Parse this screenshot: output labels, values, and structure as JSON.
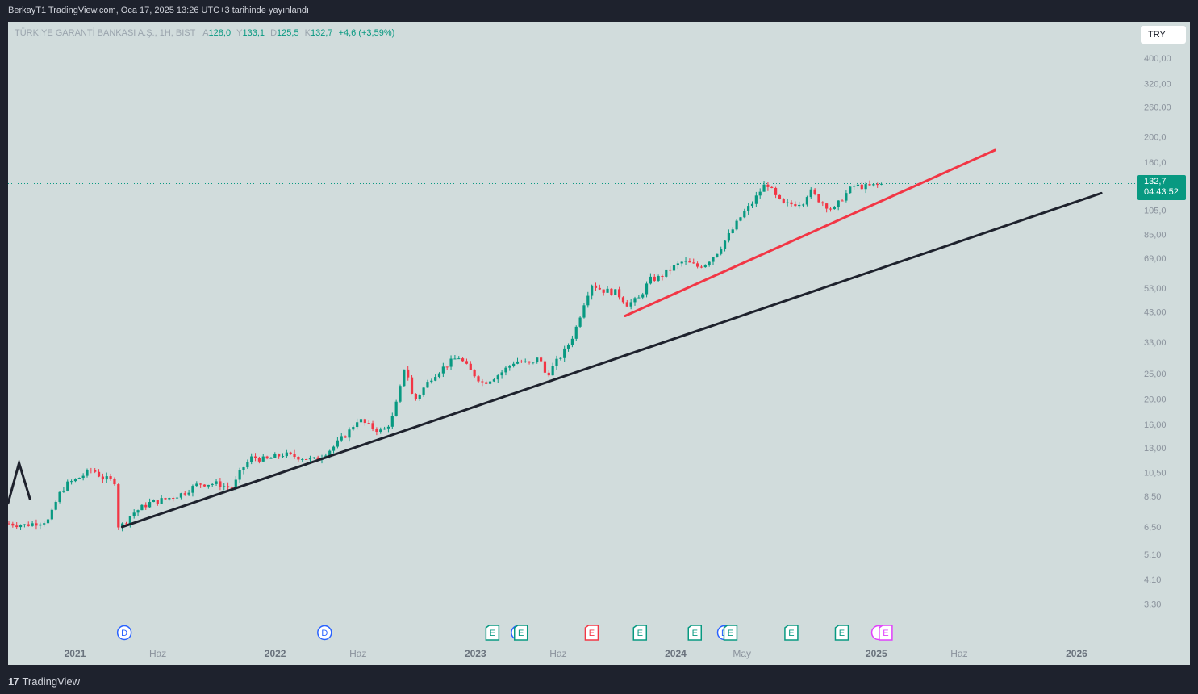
{
  "header": {
    "publish_text": "BerkayT1 TradingView.com, Oca 17, 2025 13:26 UTC+3 tarihinde yayınlandı"
  },
  "footer": {
    "brand": "TradingView"
  },
  "legend": {
    "symbol": "TÜRKİYE GARANTİ BANKASI A.Ş., 1H, BIST",
    "open_label": "A",
    "open": "128,0",
    "high_label": "Y",
    "high": "133,1",
    "low_label": "D",
    "low": "125,5",
    "close_label": "K",
    "close": "132,7",
    "change": "+4,6 (+3,59%)"
  },
  "currency_button": "TRY",
  "last_price": {
    "price": "132,7",
    "countdown": "04:43:52"
  },
  "colors": {
    "up": "#089981",
    "down": "#f23645",
    "support_line": "#1e222d",
    "trend_line": "#f23645",
    "background": "#d1dcdc"
  },
  "chart_data": {
    "type": "candlestick",
    "scale": "log",
    "ylim": [
      3.0,
      420
    ],
    "y_ticks": [
      "400,00",
      "320,00",
      "260,00",
      "200,0",
      "160,0",
      "105,0",
      "85,00",
      "69,00",
      "53,00",
      "43,00",
      "33,00",
      "25,00",
      "20,00",
      "16,00",
      "13,00",
      "10,50",
      "8,50",
      "6,50",
      "5,10",
      "4,10",
      "3,30"
    ],
    "y_tick_values": [
      400,
      320,
      260,
      200,
      160,
      105,
      85,
      69,
      53,
      43,
      33,
      25,
      20,
      16,
      13,
      10.5,
      8.5,
      6.5,
      5.1,
      4.1,
      3.3
    ],
    "x_range": [
      "2020-09-01",
      "2026-03-31"
    ],
    "x_ticks": [
      {
        "label": "2021",
        "date": "2021-01-01",
        "bold": true
      },
      {
        "label": "Haz",
        "date": "2021-06-01",
        "bold": false
      },
      {
        "label": "2022",
        "date": "2022-01-01",
        "bold": true
      },
      {
        "label": "Haz",
        "date": "2022-06-01",
        "bold": false
      },
      {
        "label": "2023",
        "date": "2023-01-01",
        "bold": true
      },
      {
        "label": "Haz",
        "date": "2023-06-01",
        "bold": false
      },
      {
        "label": "2024",
        "date": "2024-01-01",
        "bold": true
      },
      {
        "label": "May",
        "date": "2024-05-01",
        "bold": false
      },
      {
        "label": "2025",
        "date": "2025-01-01",
        "bold": true
      },
      {
        "label": "Haz",
        "date": "2025-06-01",
        "bold": false
      },
      {
        "label": "2026",
        "date": "2026-01-01",
        "bold": true
      }
    ],
    "price_path": [
      [
        "2020-09-01",
        6.7
      ],
      [
        "2020-10-01",
        6.6
      ],
      [
        "2020-11-15",
        6.9
      ],
      [
        "2020-12-01",
        8.5
      ],
      [
        "2020-12-15",
        9.4
      ],
      [
        "2021-01-15",
        10.2
      ],
      [
        "2021-02-01",
        10.8
      ],
      [
        "2021-02-20",
        10.0
      ],
      [
        "2021-03-15",
        9.7
      ],
      [
        "2021-03-20",
        6.6
      ],
      [
        "2021-03-25",
        6.5
      ],
      [
        "2021-04-15",
        7.3
      ],
      [
        "2021-05-15",
        8.0
      ],
      [
        "2021-06-15",
        8.3
      ],
      [
        "2021-07-15",
        8.7
      ],
      [
        "2021-08-15",
        9.5
      ],
      [
        "2021-09-15",
        9.5
      ],
      [
        "2021-10-15",
        9.1
      ],
      [
        "2021-11-01",
        10.8
      ],
      [
        "2021-11-20",
        12.0
      ],
      [
        "2021-12-15",
        11.7
      ],
      [
        "2022-01-15",
        12.3
      ],
      [
        "2022-02-15",
        12.0
      ],
      [
        "2022-03-15",
        11.7
      ],
      [
        "2022-04-15",
        13.0
      ],
      [
        "2022-05-15",
        15.0
      ],
      [
        "2022-06-01",
        16.8
      ],
      [
        "2022-06-20",
        15.8
      ],
      [
        "2022-07-15",
        15.0
      ],
      [
        "2022-08-01",
        16.5
      ],
      [
        "2022-08-15",
        21.0
      ],
      [
        "2022-08-25",
        27.0
      ],
      [
        "2022-09-01",
        24.0
      ],
      [
        "2022-09-10",
        19.5
      ],
      [
        "2022-09-25",
        21.5
      ],
      [
        "2022-10-15",
        24.5
      ],
      [
        "2022-11-15",
        27.5
      ],
      [
        "2022-12-01",
        29.0
      ],
      [
        "2022-12-20",
        26.0
      ],
      [
        "2023-01-15",
        23.0
      ],
      [
        "2023-02-15",
        25.0
      ],
      [
        "2023-03-15",
        28.0
      ],
      [
        "2023-04-15",
        27.0
      ],
      [
        "2023-04-25",
        29.5
      ],
      [
        "2023-05-10",
        24.5
      ],
      [
        "2023-05-25",
        27.0
      ],
      [
        "2023-06-15",
        31.0
      ],
      [
        "2023-07-01",
        36.0
      ],
      [
        "2023-07-20",
        48.0
      ],
      [
        "2023-08-01",
        55.0
      ],
      [
        "2023-08-20",
        52.0
      ],
      [
        "2023-09-15",
        51.0
      ],
      [
        "2023-10-05",
        46.0
      ],
      [
        "2023-10-25",
        48.0
      ],
      [
        "2023-11-15",
        57.0
      ],
      [
        "2023-12-01",
        58.0
      ],
      [
        "2023-12-20",
        62.0
      ],
      [
        "2024-01-15",
        67.0
      ],
      [
        "2024-02-10",
        64.0
      ],
      [
        "2024-02-25",
        66.0
      ],
      [
        "2024-03-15",
        72.0
      ],
      [
        "2024-04-10",
        86.0
      ],
      [
        "2024-04-30",
        100.0
      ],
      [
        "2024-05-20",
        112.0
      ],
      [
        "2024-06-05",
        126.0
      ],
      [
        "2024-06-15",
        134.0
      ],
      [
        "2024-06-30",
        119.0
      ],
      [
        "2024-07-15",
        110.0
      ],
      [
        "2024-08-01",
        111.0
      ],
      [
        "2024-08-20",
        113.0
      ],
      [
        "2024-09-01",
        125.0
      ],
      [
        "2024-09-20",
        114.0
      ],
      [
        "2024-10-15",
        105.0
      ],
      [
        "2024-11-01",
        118.0
      ],
      [
        "2024-11-20",
        130.0
      ],
      [
        "2024-12-15",
        129.0
      ],
      [
        "2025-01-17",
        132.7
      ]
    ],
    "last_price": 132.7,
    "lines": [
      {
        "name": "",
        "color": "#1e222d",
        "points": [
          [
            "2021-03-28",
            6.5
          ],
          [
            "2026-02-15",
            122
          ]
        ]
      },
      {
        "name": "",
        "color": "#f23645",
        "points": [
          [
            "2023-10-01",
            41.5
          ],
          [
            "2025-08-05",
            178
          ]
        ]
      },
      {
        "name": "",
        "color": "#1e222d",
        "points": [
          [
            "2020-09-01",
            8.0
          ],
          [
            "2020-09-21",
            11.4
          ],
          [
            "2020-10-11",
            8.3
          ]
        ]
      }
    ],
    "event_markers": [
      {
        "label": "D",
        "date": "2021-04-01",
        "kind": "dividend"
      },
      {
        "label": "D",
        "date": "2022-04-01",
        "kind": "dividend"
      },
      {
        "label": "E",
        "date": "2023-02-01",
        "kind": "earnings-up"
      },
      {
        "label": "D",
        "date": "2023-03-20",
        "kind": "dividend"
      },
      {
        "label": "E",
        "date": "2023-03-25",
        "kind": "earnings-up"
      },
      {
        "label": "E",
        "date": "2023-08-01",
        "kind": "earnings-down"
      },
      {
        "label": "E",
        "date": "2023-10-28",
        "kind": "earnings-up"
      },
      {
        "label": "E",
        "date": "2024-02-05",
        "kind": "earnings-up"
      },
      {
        "label": "D",
        "date": "2024-03-30",
        "kind": "dividend"
      },
      {
        "label": "E",
        "date": "2024-04-10",
        "kind": "earnings-up"
      },
      {
        "label": "E",
        "date": "2024-07-30",
        "kind": "earnings-up"
      },
      {
        "label": "E",
        "date": "2024-10-30",
        "kind": "earnings-up"
      },
      {
        "label": "",
        "date": "2025-01-05",
        "kind": "split"
      },
      {
        "label": "E",
        "date": "2025-01-18",
        "kind": "earnings-next"
      }
    ]
  }
}
